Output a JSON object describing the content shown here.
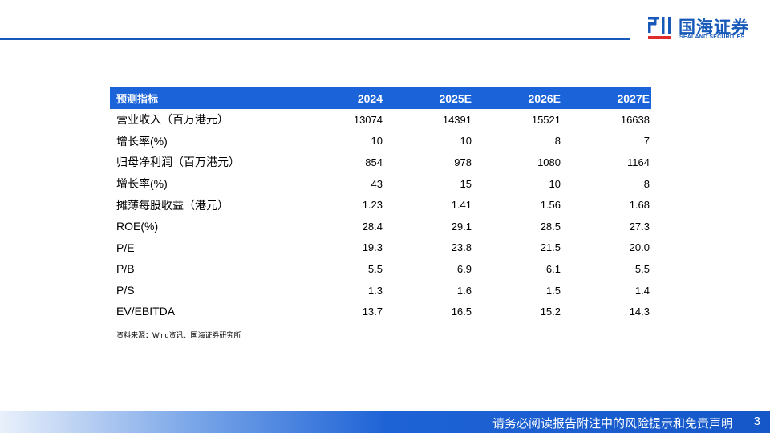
{
  "header": {
    "logo_cn": "国海证券",
    "logo_en": "SEALAND SECURITIES",
    "brand_color": "#1659b8"
  },
  "table": {
    "columns": [
      "预测指标",
      "2024",
      "2025E",
      "2026E",
      "2027E"
    ],
    "rows": [
      {
        "label": "营业收入（百万港元）",
        "values": [
          "13074",
          "14391",
          "15521",
          "16638"
        ]
      },
      {
        "label": "增长率(%)",
        "values": [
          "10",
          "10",
          "8",
          "7"
        ]
      },
      {
        "label": "归母净利润（百万港元）",
        "values": [
          "854",
          "978",
          "1080",
          "1164"
        ]
      },
      {
        "label": "增长率(%)",
        "values": [
          "43",
          "15",
          "10",
          "8"
        ]
      },
      {
        "label": "摊薄每股收益（港元）",
        "values": [
          "1.23",
          "1.41",
          "1.56",
          "1.68"
        ]
      },
      {
        "label": "ROE(%)",
        "values": [
          "28.4",
          "29.1",
          "28.5",
          "27.3"
        ]
      },
      {
        "label": "P/E",
        "values": [
          "19.3",
          "23.8",
          "21.5",
          "20.0"
        ]
      },
      {
        "label": "P/B",
        "values": [
          "5.5",
          "6.9",
          "6.1",
          "5.5"
        ]
      },
      {
        "label": "P/S",
        "values": [
          "1.3",
          "1.6",
          "1.5",
          "1.4"
        ]
      },
      {
        "label": "EV/EBITDA",
        "values": [
          "13.7",
          "16.5",
          "15.2",
          "14.3"
        ]
      }
    ],
    "header_color": "#1a63d9"
  },
  "source": "资料来源：Wind资讯、国海证券研究所",
  "footer": {
    "disclaimer": "请务必阅读报告附注中的风险提示和免责声明",
    "page_number": "3"
  }
}
